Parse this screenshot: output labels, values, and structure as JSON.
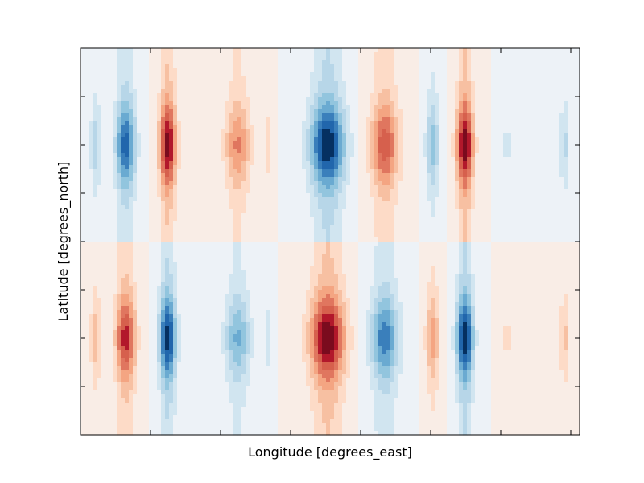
{
  "chart_data": {
    "type": "contourf",
    "title": "",
    "xlabel": "Longitude [degrees_east]",
    "ylabel": "Latitude [degrees_north]",
    "colormap": "RdBu_r",
    "x_tick_labels_visible": false,
    "y_tick_labels_visible": false,
    "x_tick_count": 7,
    "y_tick_count": 9,
    "grid": false,
    "legend": "none",
    "field_description": "Two latitude bands with alternating-sign cells along longitude; the southern band is the sign-reversed mirror of the northern band",
    "lobes": [
      {
        "lon": 0.03,
        "width": 0.012,
        "north": -0.32,
        "south": 0.32
      },
      {
        "lon": 0.09,
        "width": 0.02,
        "north": -0.82,
        "south": 0.82
      },
      {
        "lon": 0.175,
        "width": 0.017,
        "north": 0.95,
        "south": -0.95
      },
      {
        "lon": 0.315,
        "width": 0.025,
        "north": 0.52,
        "south": -0.52
      },
      {
        "lon": 0.375,
        "width": 0.01,
        "north": 0.18,
        "south": -0.18
      },
      {
        "lon": 0.495,
        "width": 0.035,
        "north": -1.0,
        "south": 1.0
      },
      {
        "lon": 0.61,
        "width": 0.028,
        "north": 0.72,
        "south": -0.72
      },
      {
        "lon": 0.705,
        "width": 0.014,
        "north": -0.45,
        "south": 0.45
      },
      {
        "lon": 0.77,
        "width": 0.017,
        "north": 1.0,
        "south": -1.0
      },
      {
        "lon": 0.855,
        "width": 0.012,
        "north": -0.15,
        "south": 0.15
      },
      {
        "lon": 0.97,
        "width": 0.01,
        "north": -0.28,
        "south": 0.28
      }
    ],
    "band_centers": {
      "north": 0.25,
      "south": 0.75
    },
    "contour_levels": [
      -1.0,
      -0.875,
      -0.75,
      -0.625,
      -0.5,
      -0.375,
      -0.25,
      -0.125,
      0.0,
      0.125,
      0.25,
      0.375,
      0.5,
      0.625,
      0.75,
      0.875,
      1.0
    ],
    "colors": [
      "#053061",
      "#2166ac",
      "#3a7fbb",
      "#6aaad1",
      "#92c5de",
      "#b7d6e8",
      "#d1e5f0",
      "#edf2f7",
      "#f9ede6",
      "#fddbc7",
      "#f7c0a2",
      "#f4a582",
      "#e0765f",
      "#d6604d",
      "#b2182b",
      "#7a0b1e"
    ]
  }
}
